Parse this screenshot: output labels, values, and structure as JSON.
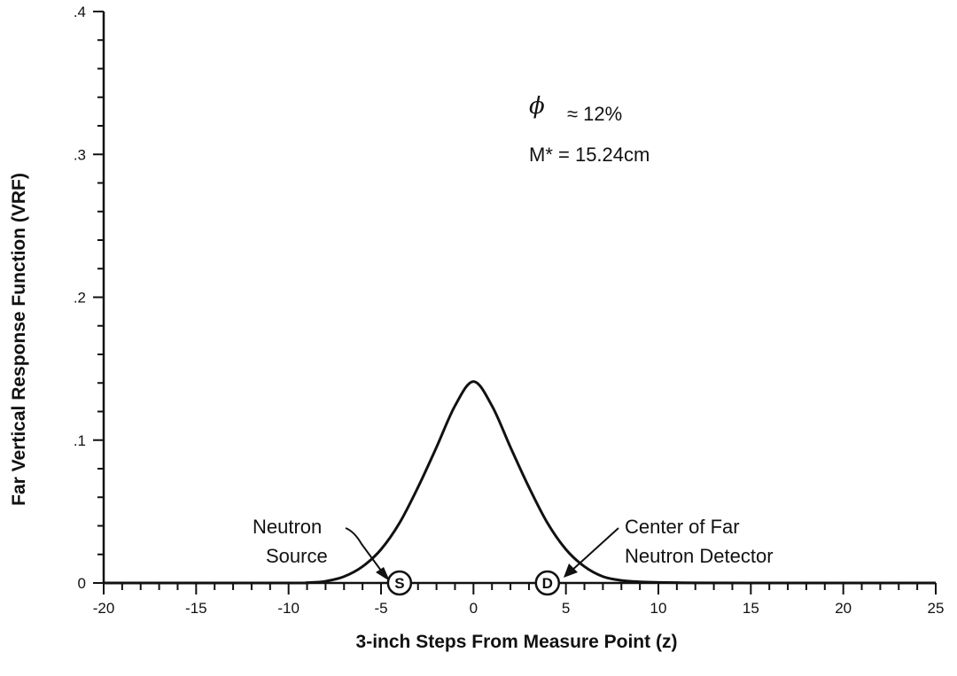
{
  "chart_data": {
    "type": "line",
    "xlabel": "3-inch Steps From Measure Point (z)",
    "ylabel": "Far Vertical Response Function (VRF)",
    "xlim": [
      -20,
      25
    ],
    "ylim": [
      0,
      0.4
    ],
    "x_ticks": [
      "-20",
      "-15",
      "-10",
      "-5",
      "0",
      "5",
      "10",
      "15",
      "20",
      "25"
    ],
    "y_ticks": [
      "0",
      ".1",
      ".2",
      ".3",
      ".4"
    ],
    "grid": false,
    "series": [
      {
        "x": [
          -20,
          -10,
          -9,
          -8,
          -7,
          -6,
          -5,
          -4,
          -3,
          -2,
          -1,
          0,
          1,
          2,
          3,
          4,
          5,
          6,
          7,
          8,
          9,
          10,
          11,
          12,
          15,
          20,
          25
        ],
        "y": [
          0,
          0,
          0.0002,
          0.0012,
          0.0045,
          0.0115,
          0.0235,
          0.042,
          0.067,
          0.095,
          0.124,
          0.141,
          0.124,
          0.095,
          0.067,
          0.042,
          0.0235,
          0.0115,
          0.0045,
          0.0018,
          0.0008,
          0.0004,
          0.0002,
          0.0001,
          0,
          0,
          0
        ]
      }
    ],
    "annotations": {
      "phi_symbol": "ϕ",
      "phi_text": "≈ 12%",
      "m_text": "M* = 15.24cm",
      "source_label_1": "Neutron",
      "source_label_2": "Source",
      "detector_label_1": "Center of Far",
      "detector_label_2": "Neutron Detector",
      "source_marker": "S",
      "detector_marker": "D"
    },
    "markers": [
      {
        "label": "S",
        "x": -4
      },
      {
        "label": "D",
        "x": 4
      }
    ]
  }
}
